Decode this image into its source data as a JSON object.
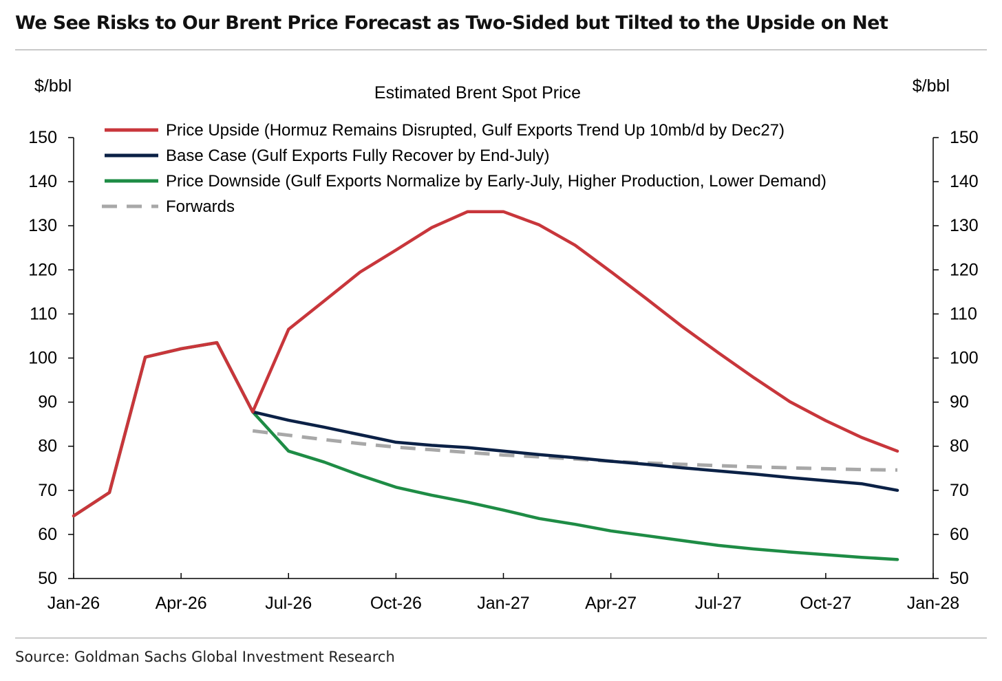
{
  "header": {
    "title": "We See Risks to Our Brent Price Forecast as Two-Sided but Tilted to the Upside on Net"
  },
  "footer": {
    "source": "Source: Goldman Sachs Global Investment Research"
  },
  "chart_data": {
    "type": "line",
    "title": "Estimated Brent Spot Price",
    "ylabel_left": "$/bbl",
    "ylabel_right": "$/bbl",
    "ylim": [
      50,
      150
    ],
    "yticks": [
      50,
      60,
      70,
      80,
      90,
      100,
      110,
      120,
      130,
      140,
      150
    ],
    "xlim": [
      "2026-01",
      "2028-01"
    ],
    "xticks": [
      {
        "date": "2026-01",
        "label": "Jan-26"
      },
      {
        "date": "2026-04",
        "label": "Apr-26"
      },
      {
        "date": "2026-07",
        "label": "Jul-26"
      },
      {
        "date": "2026-10",
        "label": "Oct-26"
      },
      {
        "date": "2027-01",
        "label": "Jan-27"
      },
      {
        "date": "2027-04",
        "label": "Apr-27"
      },
      {
        "date": "2027-07",
        "label": "Jul-27"
      },
      {
        "date": "2027-10",
        "label": "Oct-27"
      },
      {
        "date": "2028-01",
        "label": "Jan-28"
      }
    ],
    "grid": false,
    "legend": "top-left",
    "series": [
      {
        "name": "Price Upside (Hormuz Remains Disrupted, Gulf Exports Trend Up 10mb/d by Dec27)",
        "color": "#c8363b",
        "style": "solid",
        "x": [
          "2026-01",
          "2026-02",
          "2026-03",
          "2026-04",
          "2026-05",
          "2026-06",
          "2026-07",
          "2026-08",
          "2026-09",
          "2026-10",
          "2026-11",
          "2026-12",
          "2027-01",
          "2027-02",
          "2027-03",
          "2027-04",
          "2027-05",
          "2027-06",
          "2027-07",
          "2027-08",
          "2027-09",
          "2027-10",
          "2027-11",
          "2027-12"
        ],
        "y": [
          64.2,
          69.5,
          100.2,
          102.1,
          103.5,
          87.8,
          106.5,
          113.0,
          119.5,
          124.5,
          129.6,
          133.2,
          133.2,
          130.2,
          125.6,
          119.6,
          113.4,
          107.1,
          101.2,
          95.5,
          90.1,
          85.8,
          82.0,
          78.9
        ]
      },
      {
        "name": "Base Case (Gulf Exports Fully Recover by End-July)",
        "color": "#0b2146",
        "style": "solid",
        "x": [
          "2026-06",
          "2026-07",
          "2026-08",
          "2026-09",
          "2026-10",
          "2026-11",
          "2026-12",
          "2027-01",
          "2027-02",
          "2027-03",
          "2027-04",
          "2027-05",
          "2027-06",
          "2027-07",
          "2027-08",
          "2027-09",
          "2027-10",
          "2027-11",
          "2027-12"
        ],
        "y": [
          87.8,
          85.9,
          84.3,
          82.6,
          80.9,
          80.2,
          79.7,
          78.9,
          78.1,
          77.4,
          76.6,
          75.9,
          75.1,
          74.4,
          73.7,
          72.9,
          72.2,
          71.5,
          70.0
        ]
      },
      {
        "name": "Price Downside (Gulf Exports Normalize by Early-July, Higher Production, Lower Demand)",
        "color": "#1e8c45",
        "style": "solid",
        "x": [
          "2026-01",
          "2026-02",
          "2026-03",
          "2026-04",
          "2026-05",
          "2026-06",
          "2026-07",
          "2026-08",
          "2026-09",
          "2026-10",
          "2026-11",
          "2026-12",
          "2027-01",
          "2027-02",
          "2027-03",
          "2027-04",
          "2027-05",
          "2027-06",
          "2027-07",
          "2027-08",
          "2027-09",
          "2027-10",
          "2027-11",
          "2027-12"
        ],
        "y": [
          64.2,
          69.5,
          100.2,
          102.1,
          103.5,
          87.8,
          78.9,
          76.4,
          73.4,
          70.7,
          68.9,
          67.3,
          65.5,
          63.6,
          62.3,
          60.8,
          59.7,
          58.6,
          57.5,
          56.7,
          56.0,
          55.4,
          54.8,
          54.3
        ]
      },
      {
        "name": "Forwards",
        "color": "#a8a8a8",
        "style": "dashed",
        "x": [
          "2026-06",
          "2026-07",
          "2026-08",
          "2026-09",
          "2026-10",
          "2026-11",
          "2026-12",
          "2027-01",
          "2027-02",
          "2027-03",
          "2027-04",
          "2027-05",
          "2027-06",
          "2027-07",
          "2027-08",
          "2027-09",
          "2027-10",
          "2027-11",
          "2027-12"
        ],
        "y": [
          83.5,
          82.5,
          81.5,
          80.6,
          79.8,
          79.2,
          78.6,
          78.0,
          77.6,
          77.1,
          76.6,
          76.2,
          75.9,
          75.6,
          75.3,
          75.1,
          74.9,
          74.7,
          74.6
        ]
      }
    ]
  }
}
